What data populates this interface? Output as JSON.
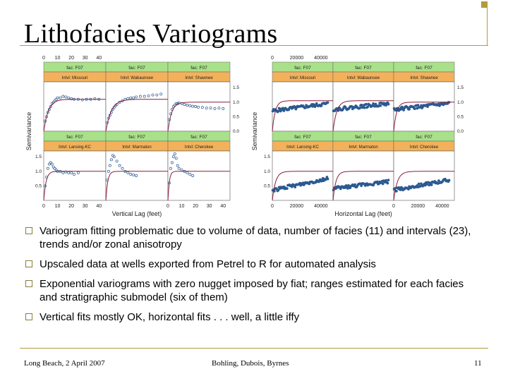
{
  "slide": {
    "title": "Lithofacies Variograms",
    "bullets": [
      "Variogram fitting problematic due to volume of data, number of facies (11) and intervals (23), trends and/or zonal anisotropy",
      "Upscaled data at wells exported from Petrel to R for automated analysis",
      "Exponential variograms with zero nugget imposed by fiat; ranges estimated for each facies and stratigraphic submodel (six of them)",
      "Vertical fits mostly OK, horizontal fits . . . well, a little iffy"
    ],
    "footer": {
      "left": "Long Beach, 2 April 2007",
      "center": "Bohling, Dubois, Byrnes",
      "right": "11"
    },
    "colors": {
      "accent": "#b39a3c",
      "strip_green": "#a9e08a",
      "strip_orange": "#f2b15a",
      "fit_line": "#8c1c3a",
      "points": "#2b5a91"
    }
  },
  "chart_data": [
    {
      "type": "scatter",
      "xlabel": "Vertical Lag (feet)",
      "ylabel": "Semivariance",
      "top_axis_ticks": [
        "0",
        "10",
        "20",
        "30",
        "40"
      ],
      "bottom_axis_ticks": [
        "0",
        "10",
        "20",
        "30",
        "40"
      ],
      "right_axis_ticks": [
        "1.5",
        "1.0",
        "0.5",
        "0.0"
      ],
      "left_axis_ticks": [
        "1.5",
        "1.0",
        "0.5"
      ],
      "xlim": [
        0,
        45
      ],
      "ylim": [
        0,
        1.7
      ],
      "panels": [
        {
          "strip_top": "fac: F07",
          "strip_bottom": "Intvl: Missouri",
          "sill": 1.1,
          "range": 10,
          "x": [
            1,
            2,
            3,
            4,
            5,
            6,
            7,
            8,
            9,
            10,
            12,
            14,
            16,
            18,
            20,
            22,
            25,
            28,
            31,
            34,
            37,
            40
          ],
          "y": [
            0.35,
            0.5,
            0.65,
            0.75,
            0.85,
            0.95,
            1.0,
            1.05,
            1.1,
            1.15,
            1.15,
            1.2,
            1.18,
            1.15,
            1.12,
            1.1,
            1.1,
            1.08,
            1.1,
            1.1,
            1.12,
            1.1
          ]
        },
        {
          "strip_top": "fac: F07",
          "strip_bottom": "Intvl: Wabaunsee",
          "sill": 1.1,
          "range": 12,
          "x": [
            1,
            2,
            3,
            4,
            5,
            6,
            7,
            8,
            10,
            12,
            14,
            16,
            18,
            20,
            22,
            25,
            28,
            31,
            34,
            37,
            40
          ],
          "y": [
            0.3,
            0.45,
            0.55,
            0.65,
            0.75,
            0.82,
            0.88,
            0.92,
            1.0,
            1.05,
            1.1,
            1.12,
            1.15,
            1.15,
            1.18,
            1.2,
            1.2,
            1.22,
            1.25,
            1.25,
            1.28
          ]
        },
        {
          "strip_top": "fac: F07",
          "strip_bottom": "Intvl: Shawnee",
          "sill": 1.0,
          "range": 8,
          "x": [
            1,
            2,
            3,
            4,
            5,
            6,
            7,
            8,
            10,
            12,
            14,
            16,
            18,
            20,
            22,
            25,
            28,
            31,
            34,
            37,
            40
          ],
          "y": [
            0.4,
            0.6,
            0.75,
            0.85,
            0.9,
            0.95,
            0.95,
            0.98,
            0.95,
            0.92,
            0.9,
            0.88,
            0.86,
            0.85,
            0.83,
            0.82,
            0.8,
            0.8,
            0.78,
            0.8,
            0.78
          ]
        },
        {
          "strip_top": "fac: F07",
          "strip_bottom": "Intvl: Lansing-KC",
          "sill": 1.0,
          "range": 5,
          "x": [
            1,
            2,
            3,
            4,
            5,
            6,
            7,
            8,
            9,
            10,
            12,
            14,
            16,
            18,
            20,
            22,
            25
          ],
          "y": [
            0.5,
            0.8,
            1.1,
            1.25,
            1.3,
            1.25,
            1.15,
            1.1,
            1.05,
            1.0,
            1.0,
            0.95,
            0.98,
            0.95,
            0.95,
            0.9,
            0.95
          ]
        },
        {
          "strip_top": "fac: F07",
          "strip_bottom": "Intvl: Marmaton",
          "sill": 1.0,
          "range": 4,
          "x": [
            1,
            2,
            3,
            4,
            5,
            6,
            8,
            10,
            12,
            14,
            16,
            18,
            20,
            22
          ],
          "y": [
            0.7,
            1.0,
            1.2,
            1.4,
            1.55,
            1.5,
            1.35,
            1.2,
            1.1,
            1.0,
            0.95,
            0.9,
            0.88,
            0.85
          ]
        },
        {
          "strip_top": "fac: F07",
          "strip_bottom": "Intvl: Cherokee",
          "sill": 1.0,
          "range": 3,
          "x": [
            1,
            2,
            3,
            4,
            5,
            6,
            7,
            8,
            10,
            12,
            14,
            16,
            18
          ],
          "y": [
            0.6,
            1.1,
            1.3,
            1.5,
            1.6,
            1.45,
            1.2,
            1.1,
            1.05,
            1.0,
            0.95,
            0.9,
            0.85
          ]
        }
      ]
    },
    {
      "type": "scatter",
      "xlabel": "Horizontal Lag (feet)",
      "ylabel": "Semivariance",
      "top_axis_ticks": [
        "0",
        "20000",
        "40000"
      ],
      "bottom_axis_ticks": [
        "0",
        "20000",
        "40000"
      ],
      "right_axis_ticks": [
        "1.5",
        "1.0",
        "0.5",
        "0.0"
      ],
      "left_axis_ticks": [
        "1.5",
        "1.0",
        "0.5"
      ],
      "xlim": [
        0,
        50000
      ],
      "ylim": [
        0,
        1.7
      ],
      "panels": [
        {
          "strip_top": "fac: F07",
          "strip_bottom": "Intvl: Missouri",
          "sill": 1.05,
          "range": 7000,
          "trend": [
            0.7,
            0.95
          ]
        },
        {
          "strip_top": "fac: F07",
          "strip_bottom": "Intvl: Wabaunsee",
          "sill": 1.05,
          "range": 9000,
          "trend": [
            0.75,
            0.95
          ]
        },
        {
          "strip_top": "fac: F07",
          "strip_bottom": "Intvl: Shawnee",
          "sill": 1.0,
          "range": 7000,
          "trend": [
            0.75,
            0.95
          ]
        },
        {
          "strip_top": "fac: F07",
          "strip_bottom": "Intvl: Lansing-KC",
          "sill": 1.0,
          "range": 8000,
          "trend": [
            0.35,
            0.75
          ]
        },
        {
          "strip_top": "fac: F07",
          "strip_bottom": "Intvl: Marmaton",
          "sill": 1.0,
          "range": 7000,
          "trend": [
            0.4,
            0.65
          ]
        },
        {
          "strip_top": "fac: F07",
          "strip_bottom": "Intvl: Cherokee",
          "sill": 1.0,
          "range": 9000,
          "trend": [
            0.35,
            0.7
          ]
        }
      ]
    }
  ]
}
